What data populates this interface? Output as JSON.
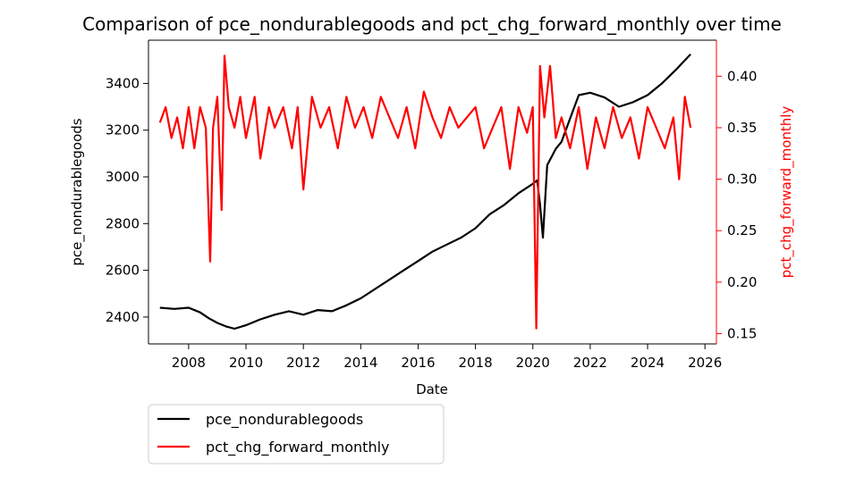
{
  "chart_data": {
    "type": "line",
    "title": "Comparison of pce_nondurablegoods and pct_chg_forward_monthly over time",
    "xlabel": "Date",
    "ylabel_left": "pce_nondurablegoods",
    "ylabel_right": "pct_chg_forward_monthly",
    "xlim": [
      2006.6,
      2026.4
    ],
    "ylim_left": [
      2285,
      3585
    ],
    "ylim_right": [
      0.14,
      0.435
    ],
    "x_ticks": [
      2008,
      2010,
      2012,
      2014,
      2016,
      2018,
      2020,
      2022,
      2024,
      2026
    ],
    "y_ticks_left": [
      2400,
      2600,
      2800,
      3000,
      3200,
      3400
    ],
    "y_ticks_right": [
      0.15,
      0.2,
      0.25,
      0.3,
      0.35,
      0.4
    ],
    "legend_placement": "below-left",
    "grid": false,
    "series": [
      {
        "name": "pce_nondurablegoods",
        "axis": "left",
        "color": "#000000",
        "x": [
          2007.0,
          2007.5,
          2008.0,
          2008.4,
          2008.7,
          2009.0,
          2009.3,
          2009.6,
          2010.0,
          2010.5,
          2011.0,
          2011.5,
          2012.0,
          2012.5,
          2013.0,
          2013.5,
          2014.0,
          2014.5,
          2015.0,
          2015.5,
          2016.0,
          2016.5,
          2017.0,
          2017.5,
          2018.0,
          2018.5,
          2019.0,
          2019.5,
          2020.0,
          2020.15,
          2020.25,
          2020.35,
          2020.5,
          2020.8,
          2021.0,
          2021.3,
          2021.6,
          2022.0,
          2022.5,
          2023.0,
          2023.5,
          2024.0,
          2024.5,
          2025.0,
          2025.5
        ],
        "values": [
          2440,
          2435,
          2440,
          2420,
          2395,
          2375,
          2360,
          2350,
          2365,
          2390,
          2410,
          2425,
          2410,
          2430,
          2425,
          2450,
          2480,
          2520,
          2560,
          2600,
          2640,
          2680,
          2710,
          2740,
          2780,
          2840,
          2880,
          2930,
          2970,
          2985,
          2880,
          2740,
          3050,
          3120,
          3150,
          3250,
          3350,
          3360,
          3340,
          3300,
          3320,
          3350,
          3400,
          3460,
          3525
        ]
      },
      {
        "name": "pct_chg_forward_monthly",
        "axis": "right",
        "color": "#ff0000",
        "x": [
          2007.0,
          2007.2,
          2007.4,
          2007.6,
          2007.8,
          2008.0,
          2008.2,
          2008.4,
          2008.6,
          2008.75,
          2008.85,
          2009.0,
          2009.15,
          2009.25,
          2009.4,
          2009.6,
          2009.8,
          2010.0,
          2010.3,
          2010.5,
          2010.8,
          2011.0,
          2011.3,
          2011.6,
          2011.8,
          2012.0,
          2012.3,
          2012.6,
          2012.9,
          2013.2,
          2013.5,
          2013.8,
          2014.1,
          2014.4,
          2014.7,
          2015.0,
          2015.3,
          2015.6,
          2015.9,
          2016.2,
          2016.5,
          2016.8,
          2017.1,
          2017.4,
          2017.7,
          2018.0,
          2018.3,
          2018.6,
          2018.9,
          2019.2,
          2019.5,
          2019.8,
          2020.0,
          2020.12,
          2020.25,
          2020.4,
          2020.6,
          2020.8,
          2021.0,
          2021.3,
          2021.6,
          2021.9,
          2022.2,
          2022.5,
          2022.8,
          2023.1,
          2023.4,
          2023.7,
          2024.0,
          2024.3,
          2024.6,
          2024.9,
          2025.1,
          2025.3,
          2025.5
        ],
        "values": [
          0.355,
          0.37,
          0.34,
          0.36,
          0.33,
          0.37,
          0.33,
          0.37,
          0.35,
          0.22,
          0.35,
          0.38,
          0.27,
          0.42,
          0.37,
          0.35,
          0.38,
          0.34,
          0.38,
          0.32,
          0.37,
          0.35,
          0.37,
          0.33,
          0.37,
          0.29,
          0.38,
          0.35,
          0.37,
          0.33,
          0.38,
          0.35,
          0.37,
          0.34,
          0.38,
          0.36,
          0.34,
          0.37,
          0.33,
          0.385,
          0.36,
          0.34,
          0.37,
          0.35,
          0.36,
          0.37,
          0.33,
          0.35,
          0.37,
          0.31,
          0.37,
          0.345,
          0.37,
          0.155,
          0.41,
          0.36,
          0.41,
          0.34,
          0.36,
          0.33,
          0.37,
          0.31,
          0.36,
          0.33,
          0.37,
          0.34,
          0.36,
          0.32,
          0.37,
          0.35,
          0.33,
          0.36,
          0.3,
          0.38,
          0.35
        ]
      }
    ]
  }
}
